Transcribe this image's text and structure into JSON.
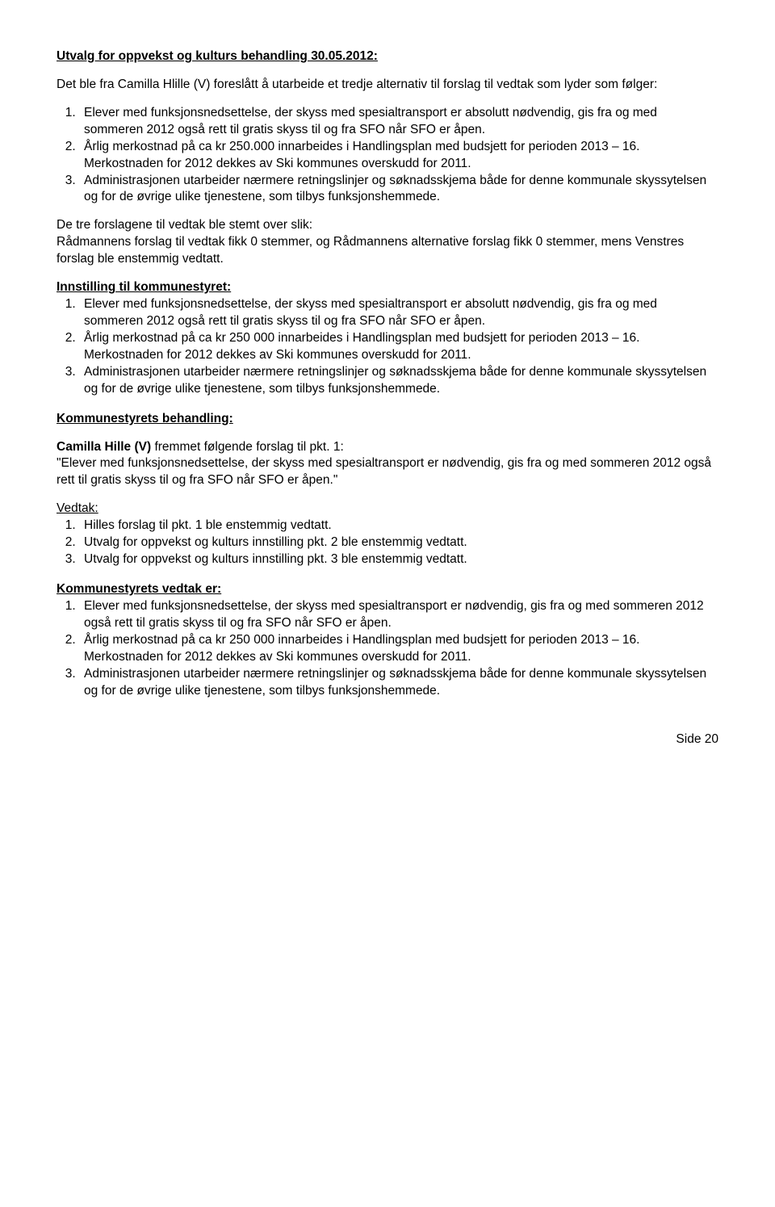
{
  "heading1": "Utvalg for oppvekst og kulturs behandling 30.05.2012:",
  "intro1": "Det ble fra Camilla Hlille (V) foreslått å utarbeide et tredje alternativ til forslag til vedtak som lyder som følger:",
  "list1": {
    "i1": "Elever med funksjonsnedsettelse, der skyss med spesialtransport er absolutt nødvendig, gis fra og med sommeren 2012 også rett til gratis skyss til og fra SFO når SFO er åpen.",
    "i2": "Årlig merkostnad på ca kr 250.000 innarbeides i Handlingsplan med budsjett for perioden 2013 – 16. Merkostnaden for 2012 dekkes av Ski kommunes overskudd for 2011.",
    "i3": "Administrasjonen utarbeider nærmere retningslinjer og søknadsskjema både for denne kommunale skyssytelsen og for de øvrige ulike tjenestene, som tilbys funksjonshemmede."
  },
  "para2": "De tre forslagene til vedtak ble stemt over slik:\nRådmannens forslag til vedtak fikk 0 stemmer, og Rådmannens alternative forslag fikk 0 stemmer, mens Venstres forslag ble enstemmig vedtatt.",
  "heading2": "Innstilling til kommunestyret:",
  "list2": {
    "i1": "Elever med funksjonsnedsettelse, der skyss med spesialtransport er absolutt nødvendig, gis fra og med sommeren 2012 også rett til gratis skyss til og fra SFO når SFO er åpen.",
    "i2": "Årlig merkostnad på ca kr 250 000 innarbeides i Handlingsplan med budsjett for perioden 2013 – 16. Merkostnaden for 2012 dekkes av Ski kommunes overskudd for 2011.",
    "i3": "Administrasjonen utarbeider nærmere retningslinjer og søknadsskjema både for denne kommunale skyssytelsen og for de øvrige ulike tjenestene, som tilbys funksjonshemmede."
  },
  "heading3": "Kommunestyrets behandling:",
  "camilla_lead_bold": "Camilla Hille (V) ",
  "camilla_lead_rest": "fremmet følgende forslag til pkt. 1:",
  "camilla_quote": "\"Elever med funksjonsnedsettelse, der skyss med spesialtransport er nødvendig, gis fra og med sommeren 2012 også rett til gratis skyss til og fra SFO når SFO er åpen.\"",
  "vedtak_label": "Vedtak:",
  "list3": {
    "i1": "Hilles forslag til pkt. 1 ble enstemmig vedtatt.",
    "i2": "Utvalg for oppvekst og kulturs innstilling pkt. 2 ble enstemmig vedtatt.",
    "i3": "Utvalg for oppvekst og kulturs innstilling pkt. 3 ble enstemmig vedtatt."
  },
  "heading4": "Kommunestyrets vedtak er:",
  "list4": {
    "i1": "Elever med funksjonsnedsettelse, der skyss med spesialtransport er nødvendig, gis fra og med sommeren 2012 også rett til gratis skyss til og fra SFO når SFO er åpen.",
    "i2": "Årlig merkostnad på ca kr 250 000 innarbeides i Handlingsplan med budsjett for perioden 2013 – 16. Merkostnaden for 2012 dekkes av Ski kommunes overskudd for 2011.",
    "i3": "Administrasjonen utarbeider nærmere retningslinjer og søknadsskjema både for denne kommunale skyssytelsen og for de øvrige ulike tjenestene, som tilbys funksjonshemmede."
  },
  "page_number": "Side 20"
}
